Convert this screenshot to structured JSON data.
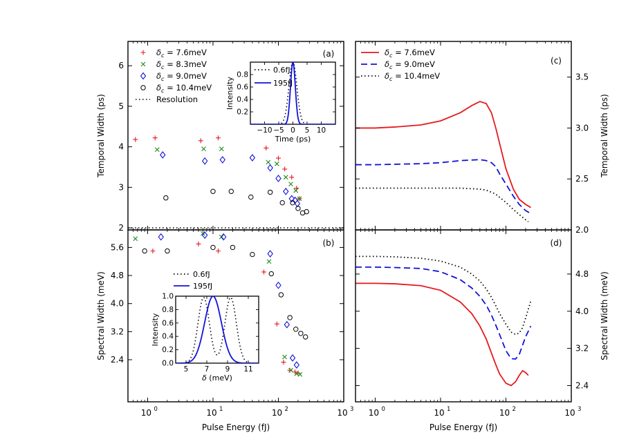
{
  "colors": {
    "red": "#e8171b",
    "green": "#1a8a1a",
    "blue": "#1111dd",
    "black": "#000000"
  },
  "chart_data": [
    {
      "id": "a",
      "panel_label": "(a)",
      "type": "scatter",
      "xscale": "log",
      "xlim": [
        0.5,
        1000
      ],
      "ylim": [
        1.95,
        6.6
      ],
      "ylabel": "Temporal Width (ps)",
      "yticks": [
        2,
        3,
        4,
        5,
        6
      ],
      "legend": [
        "δc = 7.6meV",
        "δc = 8.3meV",
        "δc = 9.0meV",
        "δc = 10.4meV",
        "Resolution"
      ],
      "resolution": 2.0,
      "series": [
        {
          "name": "δc = 7.6meV",
          "marker": "plus",
          "color": "red",
          "x": [
            0.65,
            1.3,
            6.5,
            12,
            65,
            100,
            125,
            160,
            190,
            210
          ],
          "y": [
            4.18,
            4.22,
            4.15,
            4.22,
            3.97,
            3.72,
            3.45,
            3.25,
            2.98,
            2.72
          ]
        },
        {
          "name": "δc = 8.3meV",
          "marker": "x",
          "color": "green",
          "x": [
            1.4,
            7.2,
            13.5,
            70,
            95,
            130,
            155,
            185,
            210
          ],
          "y": [
            3.93,
            3.95,
            3.95,
            3.62,
            3.58,
            3.25,
            3.08,
            2.92,
            2.72
          ]
        },
        {
          "name": "δc = 9.0meV",
          "marker": "diamond",
          "color": "blue",
          "x": [
            1.7,
            7.5,
            14,
            40,
            75,
            100,
            130,
            160,
            180,
            195
          ],
          "y": [
            3.8,
            3.65,
            3.68,
            3.73,
            3.48,
            3.22,
            2.9,
            2.72,
            2.68,
            2.6
          ]
        },
        {
          "name": "δc = 10.4meV",
          "marker": "circle",
          "color": "black",
          "x": [
            1.9,
            10,
            19,
            38,
            75,
            115,
            165,
            200,
            235,
            270
          ],
          "y": [
            2.74,
            2.9,
            2.9,
            2.76,
            2.88,
            2.62,
            2.62,
            2.48,
            2.37,
            2.4
          ]
        }
      ],
      "inset": {
        "xlabel": "Time (ps)",
        "ylabel": "Intensity",
        "xlim": [
          -15,
          15
        ],
        "ylim": [
          0,
          1
        ],
        "xticks": [
          -10,
          -5,
          0,
          5,
          10
        ],
        "xtick_labels": [
          "−10",
          "−5",
          "0",
          "5",
          "10"
        ],
        "yticks": [
          0.2,
          0.4,
          0.6,
          0.8
        ],
        "ytick_labels": [
          "0.2",
          "0.4",
          "0.6",
          "0.8"
        ],
        "legend": [
          "0.6fJ",
          "195fJ"
        ],
        "series": [
          {
            "name": "0.6fJ",
            "style": "dotted",
            "color": "black",
            "model": "gaussian",
            "center": 0,
            "fwhm": 3.3
          },
          {
            "name": "195fJ",
            "style": "solid",
            "color": "blue",
            "model": "gaussian",
            "center": 0,
            "fwhm": 2.0
          }
        ]
      }
    },
    {
      "id": "b",
      "panel_label": "(b)",
      "type": "scatter",
      "xscale": "log",
      "xlim": [
        0.5,
        1000
      ],
      "ylim": [
        1.2,
        6.1
      ],
      "ylabel": "Spectral Width (meV)",
      "xlabel": "Pulse Energy (fJ)",
      "yticks": [
        2.4,
        3.2,
        4.0,
        4.8,
        5.6
      ],
      "ytick_labels": [
        "2.4",
        "3.2",
        "4.0",
        "4.8",
        "5.6"
      ],
      "series": [
        {
          "name": "δc = 7.6meV",
          "marker": "plus",
          "color": "red",
          "x": [
            1.2,
            6,
            12,
            60,
            95,
            120,
            150,
            180,
            200
          ],
          "y": [
            5.5,
            5.7,
            5.5,
            4.9,
            3.42,
            2.33,
            2.1,
            2.05,
            2.02
          ]
        },
        {
          "name": "δc = 8.3meV",
          "marker": "x",
          "color": "green",
          "x": [
            0.65,
            7,
            13.5,
            72,
            125,
            155,
            190,
            215
          ],
          "y": [
            5.85,
            6.0,
            5.9,
            5.2,
            2.48,
            2.1,
            2.0,
            1.98
          ]
        },
        {
          "name": "δc = 9.0meV",
          "marker": "diamond",
          "color": "blue",
          "x": [
            1.6,
            7.5,
            14.5,
            75,
            100,
            135,
            165,
            190
          ],
          "y": [
            5.9,
            5.95,
            5.9,
            5.42,
            4.52,
            3.4,
            2.45,
            2.25
          ]
        },
        {
          "name": "δc = 10.4meV",
          "marker": "circle",
          "color": "black",
          "x": [
            0.9,
            2,
            10,
            20,
            40,
            78,
            110,
            150,
            185,
            220,
            260
          ],
          "y": [
            5.5,
            5.5,
            5.6,
            5.6,
            5.4,
            4.85,
            4.25,
            3.6,
            3.27,
            3.15,
            3.05
          ]
        }
      ],
      "inset": {
        "xlabel": "δ (meV)",
        "ylabel": "Intensity",
        "xlim": [
          4,
          12
        ],
        "ylim": [
          0,
          1
        ],
        "xticks": [
          5,
          7,
          9,
          11
        ],
        "xtick_labels": [
          "5",
          "7",
          "9",
          "11"
        ],
        "yticks": [
          0,
          0.2,
          0.4,
          0.6,
          0.8,
          1.0
        ],
        "ytick_labels": [
          "0.0",
          "0.2",
          "0.4",
          "0.6",
          "0.8",
          "1.0"
        ],
        "legend": [
          "0.6fJ",
          "195fJ"
        ],
        "series": [
          {
            "name": "0.6fJ",
            "style": "dotted",
            "color": "black",
            "model": "doublepeak",
            "center": 8,
            "sep": 2.6,
            "width": 1.3
          },
          {
            "name": "195fJ",
            "style": "solid",
            "color": "blue",
            "model": "gaussian",
            "center": 7.6,
            "fwhm": 1.9
          }
        ]
      }
    },
    {
      "id": "c",
      "panel_label": "(c)",
      "type": "line",
      "xscale": "log",
      "xlim": [
        0.5,
        1000
      ],
      "ylim": [
        2.0,
        3.85
      ],
      "ylabel": "Temporal Width (ps)",
      "yticks": [
        2.0,
        2.5,
        3.0,
        3.5
      ],
      "ytick_labels": [
        "2.0",
        "2.5",
        "3.0",
        "3.5"
      ],
      "legend": [
        "δc = 7.6meV",
        "δc = 9.0meV",
        "δc = 10.4meV"
      ],
      "series": [
        {
          "name": "δc = 7.6meV",
          "style": "solid",
          "color": "red",
          "x": [
            0.5,
            1,
            2,
            5,
            10,
            20,
            30,
            40,
            50,
            60,
            70,
            80,
            100,
            130,
            160,
            200,
            240
          ],
          "y": [
            3.0,
            3.0,
            3.01,
            3.03,
            3.07,
            3.15,
            3.22,
            3.26,
            3.24,
            3.15,
            3.0,
            2.85,
            2.6,
            2.4,
            2.3,
            2.25,
            2.22
          ]
        },
        {
          "name": "δc = 9.0meV",
          "style": "dashed",
          "color": "blue",
          "x": [
            0.5,
            1,
            5,
            10,
            20,
            40,
            50,
            60,
            70,
            80,
            100,
            130,
            160,
            200,
            240
          ],
          "y": [
            2.64,
            2.64,
            2.65,
            2.66,
            2.68,
            2.69,
            2.68,
            2.66,
            2.62,
            2.55,
            2.45,
            2.33,
            2.25,
            2.19,
            2.16
          ]
        },
        {
          "name": "δc = 10.4meV",
          "style": "dotted",
          "color": "black",
          "x": [
            0.5,
            1,
            5,
            10,
            20,
            40,
            50,
            60,
            70,
            80,
            100,
            130,
            160,
            200,
            220
          ],
          "y": [
            2.41,
            2.41,
            2.41,
            2.41,
            2.41,
            2.4,
            2.39,
            2.37,
            2.35,
            2.32,
            2.27,
            2.2,
            2.15,
            2.1,
            2.08
          ]
        }
      ]
    },
    {
      "id": "d",
      "panel_label": "(d)",
      "type": "line",
      "xscale": "log",
      "xlim": [
        0.5,
        1000
      ],
      "ylim": [
        2.05,
        5.75
      ],
      "ylabel": "Spectral Width (meV)",
      "xlabel": "Pulse Energy (fJ)",
      "yticks": [
        2.4,
        3.2,
        4.0,
        4.8
      ],
      "ytick_labels": [
        "2.4",
        "3.2",
        "4.0",
        "4.8"
      ],
      "series": [
        {
          "name": "δc = 7.6meV",
          "style": "solid",
          "color": "red",
          "x": [
            0.5,
            1,
            2,
            5,
            10,
            20,
            30,
            40,
            50,
            60,
            70,
            80,
            100,
            120,
            140,
            160,
            180,
            200,
            220
          ],
          "y": [
            4.6,
            4.6,
            4.59,
            4.55,
            4.45,
            4.2,
            3.95,
            3.68,
            3.4,
            3.1,
            2.85,
            2.65,
            2.45,
            2.4,
            2.48,
            2.62,
            2.72,
            2.68,
            2.62
          ]
        },
        {
          "name": "δc = 9.0meV",
          "style": "dashed",
          "color": "blue",
          "x": [
            0.5,
            1,
            2,
            5,
            10,
            20,
            30,
            40,
            50,
            60,
            70,
            80,
            100,
            120,
            140,
            160,
            180,
            200,
            240
          ],
          "y": [
            4.95,
            4.95,
            4.94,
            4.92,
            4.85,
            4.68,
            4.5,
            4.32,
            4.13,
            3.92,
            3.7,
            3.5,
            3.15,
            2.98,
            2.97,
            3.07,
            3.27,
            3.45,
            3.68
          ]
        },
        {
          "name": "δc = 10.4meV",
          "style": "dotted",
          "color": "black",
          "x": [
            0.5,
            1,
            2,
            5,
            10,
            20,
            30,
            40,
            50,
            60,
            70,
            80,
            100,
            120,
            140,
            160,
            180,
            200,
            240
          ],
          "y": [
            5.18,
            5.18,
            5.17,
            5.14,
            5.08,
            4.95,
            4.8,
            4.65,
            4.48,
            4.3,
            4.12,
            3.95,
            3.72,
            3.55,
            3.5,
            3.53,
            3.65,
            3.85,
            4.22
          ]
        }
      ]
    }
  ],
  "shared_xaxis": {
    "xticks": [
      1,
      10,
      100,
      1000
    ],
    "xtick_bases": [
      "10",
      "10",
      "10",
      "10"
    ],
    "xtick_exps": [
      "0",
      "1",
      "2",
      "3"
    ]
  }
}
